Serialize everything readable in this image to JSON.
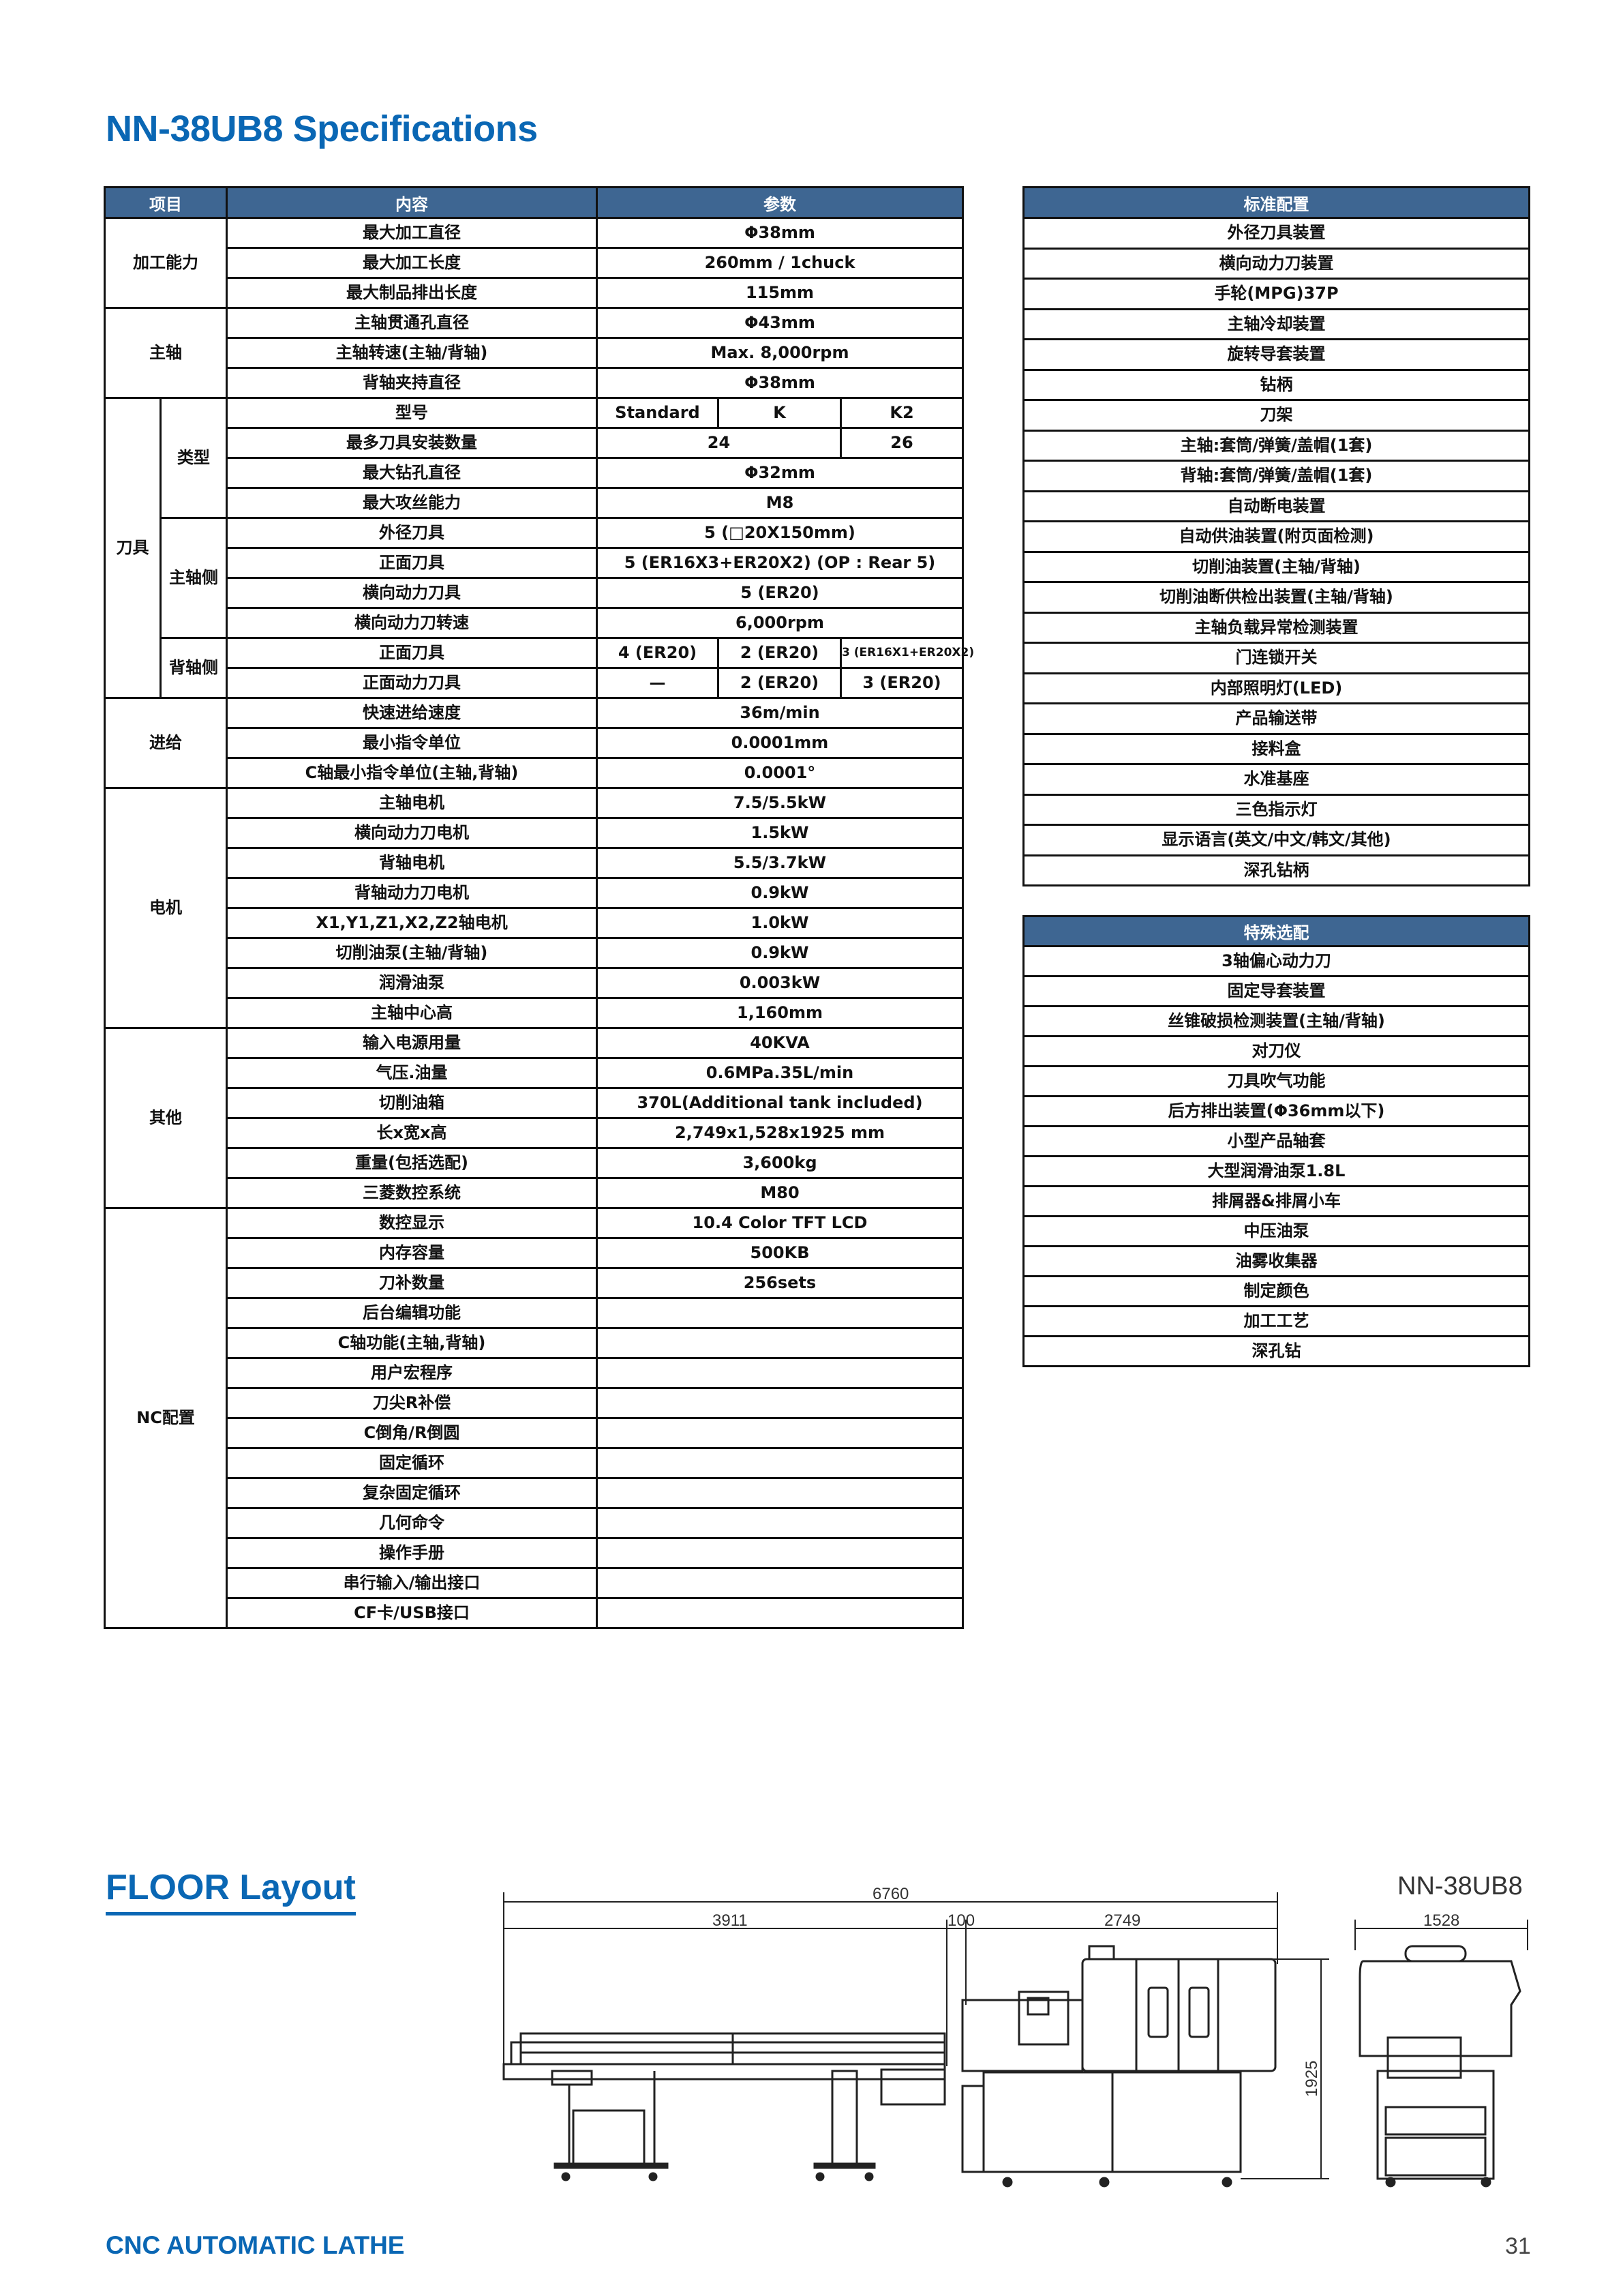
{
  "page_title": "NN-38UB8 Specifications",
  "spec_table": {
    "headers": [
      "项目",
      "内容",
      "参数"
    ],
    "groups": [
      {
        "label": "加工能力",
        "rows": [
          {
            "name": "最大加工直径",
            "values": [
              "Φ38mm"
            ]
          },
          {
            "name": "最大加工长度",
            "values": [
              "260mm / 1chuck"
            ]
          },
          {
            "name": "最大制品排出长度",
            "values": [
              "115mm"
            ]
          }
        ]
      },
      {
        "label": "主轴",
        "rows": [
          {
            "name": "主轴贯通孔直径",
            "values": [
              "Φ43mm"
            ]
          },
          {
            "name": "主轴转速(主轴/背轴)",
            "values": [
              "Max. 8,000rpm"
            ]
          },
          {
            "name": "背轴夹持直径",
            "values": [
              "Φ38mm"
            ]
          }
        ]
      },
      {
        "label": "刀具",
        "subgroups": [
          {
            "label": "类型",
            "rows": [
              {
                "name": "型号",
                "values": [
                  "Standard",
                  "K",
                  "K2"
                ]
              },
              {
                "name": "最多刀具安装数量",
                "values": [
                  "24",
                  "26"
                ]
              },
              {
                "name": "最大钻孔直径",
                "values": [
                  "Φ32mm"
                ]
              },
              {
                "name": "最大攻丝能力",
                "values": [
                  "M8"
                ]
              }
            ]
          },
          {
            "label": "主轴侧",
            "rows": [
              {
                "name": "外径刀具",
                "values": [
                  "5 (□20X150mm)"
                ]
              },
              {
                "name": "正面刀具",
                "values": [
                  "5 (ER16X3+ER20X2) (OP : Rear 5)"
                ]
              },
              {
                "name": "横向动力刀具",
                "values": [
                  "5 (ER20)"
                ]
              },
              {
                "name": "横向动力刀转速",
                "values": [
                  "6,000rpm"
                ]
              }
            ]
          },
          {
            "label": "背轴侧",
            "rows": [
              {
                "name": "正面刀具",
                "values": [
                  "4 (ER20)",
                  "2 (ER20)",
                  "3 (ER16X1+ER20X2)"
                ]
              },
              {
                "name": "正面动力刀具",
                "values": [
                  "—",
                  "2 (ER20)",
                  "3 (ER20)"
                ]
              }
            ]
          }
        ]
      },
      {
        "label": "进给",
        "rows": [
          {
            "name": "快速进给速度",
            "values": [
              "36m/min"
            ]
          },
          {
            "name": "最小指令单位",
            "values": [
              "0.0001mm"
            ]
          },
          {
            "name": "C轴最小指令单位(主轴,背轴)",
            "values": [
              "0.0001°"
            ]
          }
        ]
      },
      {
        "label": "电机",
        "rows": [
          {
            "name": "主轴电机",
            "values": [
              "7.5/5.5kW"
            ]
          },
          {
            "name": "横向动力刀电机",
            "values": [
              "1.5kW"
            ]
          },
          {
            "name": "背轴电机",
            "values": [
              "5.5/3.7kW"
            ]
          },
          {
            "name": "背轴动力刀电机",
            "values": [
              "0.9kW"
            ]
          },
          {
            "name": "X1,Y1,Z1,X2,Z2轴电机",
            "values": [
              "1.0kW"
            ]
          },
          {
            "name": "切削油泵(主轴/背轴)",
            "values": [
              "0.9kW"
            ]
          },
          {
            "name": "润滑油泵",
            "values": [
              "0.003kW"
            ]
          },
          {
            "name": "主轴中心高",
            "values": [
              "1,160mm"
            ]
          }
        ]
      },
      {
        "label": "其他",
        "rows": [
          {
            "name": "输入电源用量",
            "values": [
              "40KVA"
            ]
          },
          {
            "name": "气压.油量",
            "values": [
              "0.6MPa.35L/min"
            ]
          },
          {
            "name": "切削油箱",
            "values": [
              "370L(Additional tank included)"
            ]
          },
          {
            "name": "长x宽x高",
            "values": [
              "2,749x1,528x1925 mm"
            ]
          },
          {
            "name": "重量(包括选配)",
            "values": [
              "3,600kg"
            ]
          },
          {
            "name": "三菱数控系统",
            "values": [
              "M80"
            ]
          }
        ]
      },
      {
        "label": "NC配置",
        "rows": [
          {
            "name": "数控显示",
            "values": [
              "10.4 Color TFT LCD"
            ]
          },
          {
            "name": "内存容量",
            "values": [
              "500KB"
            ]
          },
          {
            "name": "刀补数量",
            "values": [
              "256sets"
            ]
          },
          {
            "name": "后台编辑功能",
            "values": [
              ""
            ]
          },
          {
            "name": "C轴功能(主轴,背轴)",
            "values": [
              ""
            ]
          },
          {
            "name": "用户宏程序",
            "values": [
              ""
            ]
          },
          {
            "name": "刀尖R补偿",
            "values": [
              ""
            ]
          },
          {
            "name": "C倒角/R倒圆",
            "values": [
              ""
            ]
          },
          {
            "name": "固定循环",
            "values": [
              ""
            ]
          },
          {
            "name": "复杂固定循环",
            "values": [
              ""
            ]
          },
          {
            "name": "几何命令",
            "values": [
              ""
            ]
          },
          {
            "name": "操作手册",
            "values": [
              ""
            ]
          },
          {
            "name": "串行输入/输出接口",
            "values": [
              ""
            ]
          },
          {
            "name": "CF卡/USB接口",
            "values": [
              ""
            ]
          }
        ]
      }
    ]
  },
  "standard_config": {
    "header": "标准配置",
    "items": [
      "外径刀具装置",
      "横向动力刀装置",
      "手轮(MPG)37P",
      "主轴冷却装置",
      "旋转导套装置",
      "钻柄",
      "刀架",
      "主轴:套筒/弹簧/盖帽(1套)",
      "背轴:套筒/弹簧/盖帽(1套)",
      "自动断电装置",
      "自动供油装置(附页面检测)",
      "切削油装置(主轴/背轴)",
      "切削油断供检出装置(主轴/背轴)",
      "主轴负载异常检测装置",
      "门连锁开关",
      "内部照明灯(LED)",
      "产品输送带",
      "接料盒",
      "水准基座",
      "三色指示灯",
      "显示语言(英文/中文/韩文/其他)",
      "深孔钻柄"
    ]
  },
  "special_options": {
    "header": "特殊选配",
    "items": [
      "3轴偏心动力刀",
      "固定导套装置",
      "丝锥破损检测装置(主轴/背轴)",
      "对刀仪",
      "刀具吹气功能",
      "后方排出装置(Φ36mm以下)",
      "小型产品轴套",
      "大型润滑油泵1.8L",
      "排屑器&排屑小车",
      "中压油泵",
      "油雾收集器",
      "制定颜色",
      "加工工艺",
      "深孔钻"
    ]
  },
  "floor_layout": {
    "title": "FLOOR Layout",
    "model": "NN-38UB8",
    "dimensions": {
      "overall_length": "6760",
      "bar_feeder_length": "3911",
      "gap": "100",
      "machine_length": "2749",
      "machine_width": "1528",
      "machine_height": "1925"
    }
  },
  "footer": {
    "label": "CNC AUTOMATIC LATHE",
    "page_number": "31"
  },
  "colors": {
    "brand_blue": "#0a67b4",
    "table_header": "#3e6692"
  }
}
